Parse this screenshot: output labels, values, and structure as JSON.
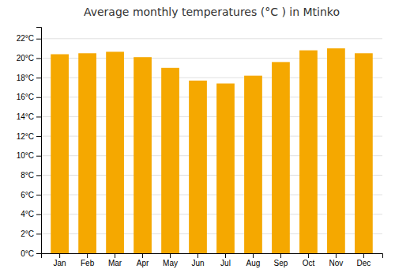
{
  "chart_data": {
    "type": "bar",
    "title": "Average monthly temperatures (°C ) in Mtinko",
    "categories": [
      "Jan",
      "Feb",
      "Mar",
      "Apr",
      "May",
      "Jun",
      "Jul",
      "Aug",
      "Sep",
      "Oct",
      "Nov",
      "Dec"
    ],
    "values": [
      20.4,
      20.5,
      20.65,
      20.1,
      19.0,
      17.7,
      17.4,
      18.2,
      19.6,
      20.8,
      21.0,
      20.5
    ],
    "color": "#F5A800",
    "ylim": [
      0,
      23.2
    ],
    "yticks": [
      {
        "value": 0,
        "label": "0°C"
      },
      {
        "value": 2,
        "label": "2°C"
      },
      {
        "value": 4,
        "label": "4°C"
      },
      {
        "value": 6,
        "label": "6°C"
      },
      {
        "value": 8,
        "label": "8°C"
      },
      {
        "value": 10,
        "label": "10°C"
      },
      {
        "value": 12,
        "label": "12°C"
      },
      {
        "value": 14,
        "label": "14°C"
      },
      {
        "value": 16,
        "label": "16°C"
      },
      {
        "value": 18,
        "label": "18°C"
      },
      {
        "value": 20,
        "label": "20°C"
      },
      {
        "value": 22,
        "label": "22°C"
      }
    ],
    "grid": true
  }
}
